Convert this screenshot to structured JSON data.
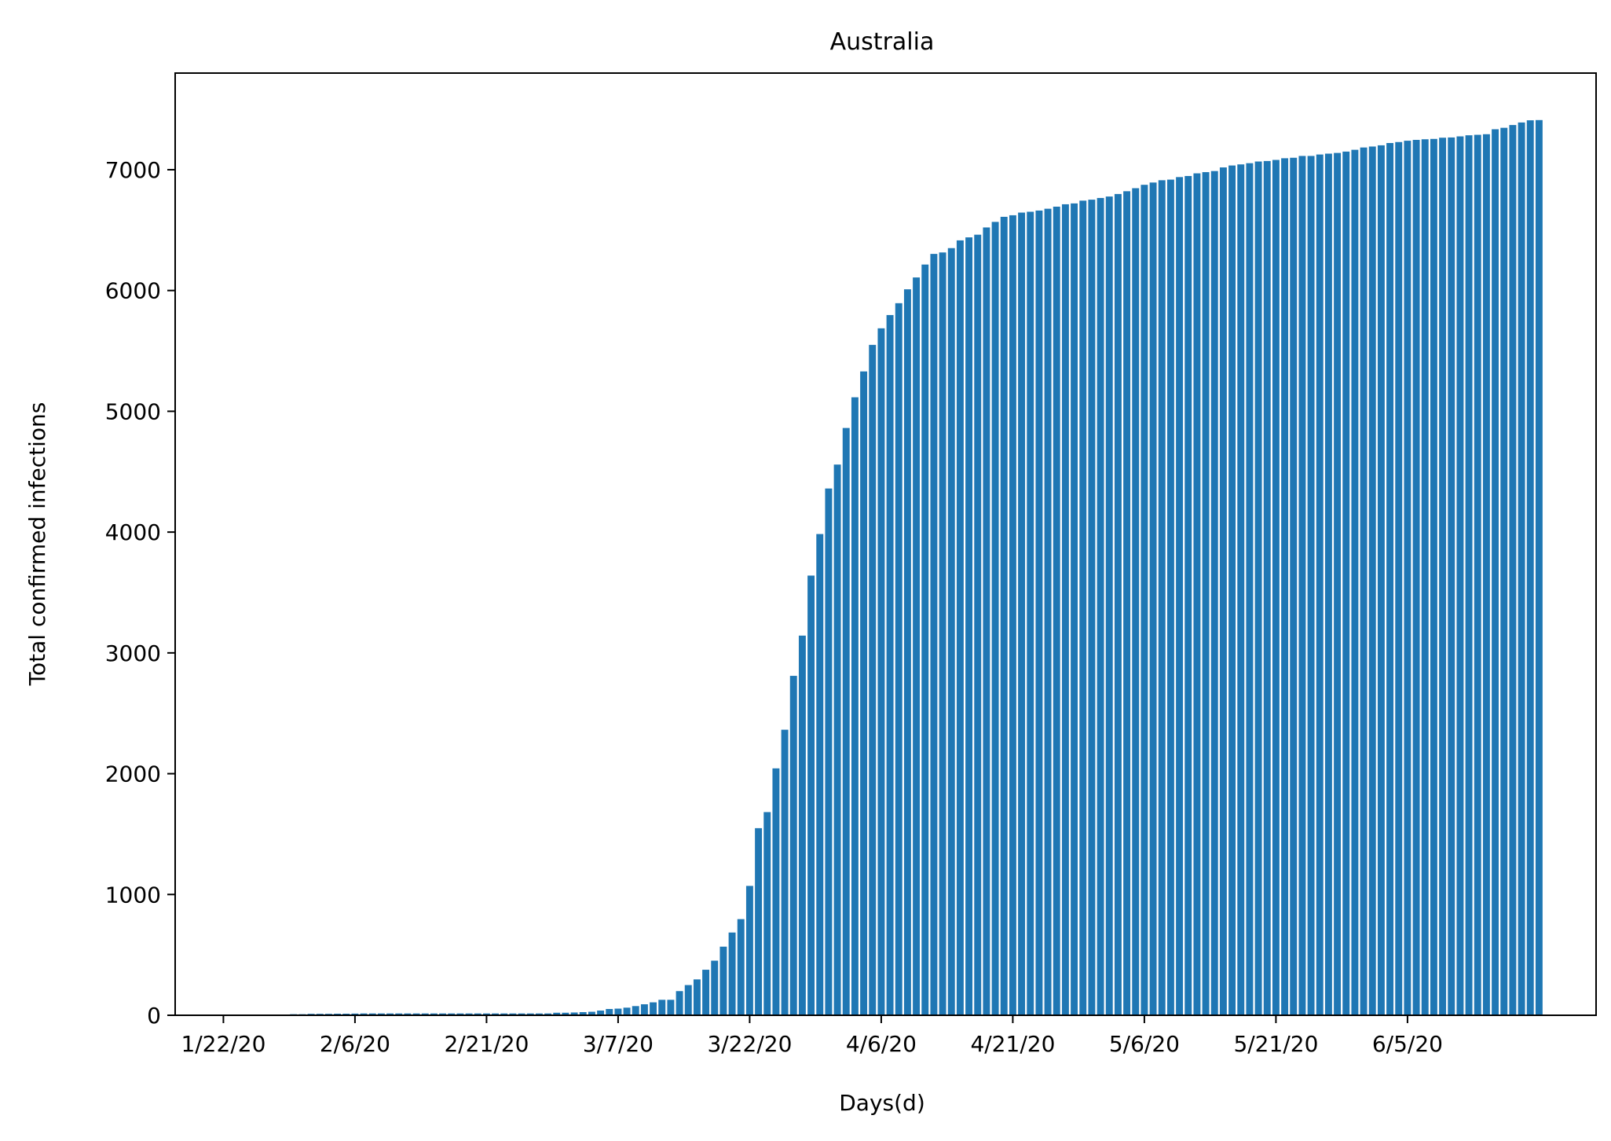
{
  "chart_data": {
    "type": "bar",
    "title": "Australia",
    "xlabel": "Days(d)",
    "ylabel": "Total confirmed infections",
    "xlim": [
      -5.5,
      156.5
    ],
    "ylim": [
      0,
      7800
    ],
    "yticks": [
      0,
      1000,
      2000,
      3000,
      4000,
      5000,
      6000,
      7000
    ],
    "xticks": [
      {
        "index": 0,
        "label": "1/22/20"
      },
      {
        "index": 15,
        "label": "2/6/20"
      },
      {
        "index": 30,
        "label": "2/21/20"
      },
      {
        "index": 45,
        "label": "3/7/20"
      },
      {
        "index": 60,
        "label": "3/22/20"
      },
      {
        "index": 75,
        "label": "4/6/20"
      },
      {
        "index": 90,
        "label": "4/21/20"
      },
      {
        "index": 105,
        "label": "5/6/20"
      },
      {
        "index": 120,
        "label": "5/21/20"
      },
      {
        "index": 135,
        "label": "6/5/20"
      }
    ],
    "grid": false,
    "bar_color": "#1f77b4",
    "start_date": "1/22/20",
    "values": [
      0,
      0,
      0,
      0,
      4,
      5,
      5,
      6,
      9,
      9,
      12,
      12,
      12,
      13,
      13,
      14,
      15,
      15,
      15,
      15,
      15,
      15,
      15,
      15,
      15,
      15,
      15,
      15,
      15,
      15,
      15,
      15,
      15,
      15,
      15,
      15,
      15,
      15,
      21,
      21,
      23,
      26,
      29,
      39,
      52,
      55,
      63,
      76,
      91,
      107,
      128,
      128,
      200,
      250,
      297,
      377,
      452,
      568,
      685,
      796,
      1071,
      1549,
      1682,
      2044,
      2364,
      2810,
      3143,
      3640,
      3984,
      4361,
      4559,
      4862,
      5116,
      5330,
      5550,
      5687,
      5797,
      5895,
      6010,
      6108,
      6215,
      6303,
      6315,
      6351,
      6415,
      6440,
      6462,
      6522,
      6568,
      6610,
      6623,
      6645,
      6652,
      6662,
      6677,
      6694,
      6714,
      6721,
      6744,
      6752,
      6766,
      6778,
      6799,
      6822,
      6847,
      6875,
      6894,
      6913,
      6918,
      6939,
      6948,
      6970,
      6980,
      6989,
      7019,
      7035,
      7044,
      7054,
      7068,
      7072,
      7081,
      7095,
      7099,
      7114,
      7114,
      7126,
      7133,
      7139,
      7150,
      7165,
      7184,
      7192,
      7202,
      7221,
      7229,
      7240,
      7247,
      7252,
      7255,
      7265,
      7267,
      7276,
      7285,
      7289,
      7294,
      7335,
      7347,
      7370,
      7391,
      7409,
      7411
    ]
  }
}
